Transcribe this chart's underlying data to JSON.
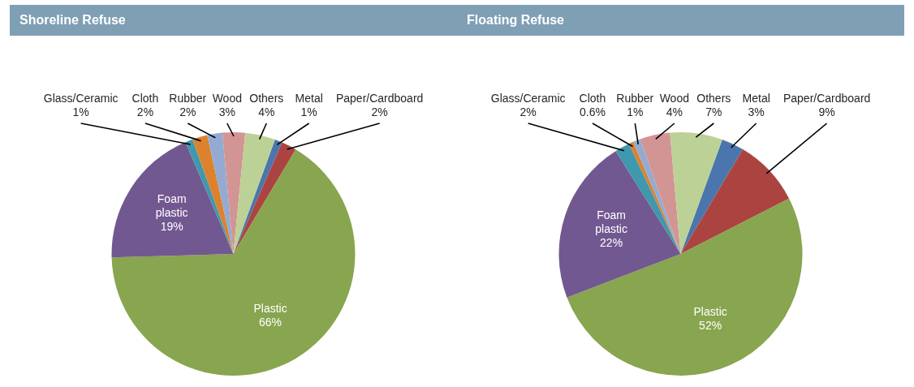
{
  "chart_data": [
    {
      "type": "pie",
      "title": "Shoreline Refuse",
      "categories": [
        "Metal",
        "Paper/Cardboard",
        "Plastic",
        "Foam plastic",
        "Glass/Ceramic",
        "Cloth",
        "Rubber",
        "Wood",
        "Others"
      ],
      "values": [
        1,
        2,
        66,
        19,
        1,
        2,
        2,
        3,
        4
      ],
      "colors": [
        "#4a76ad",
        "#ab4441",
        "#88a54f",
        "#725890",
        "#3f98ad",
        "#dc822f",
        "#93abd3",
        "#d29593",
        "#bcd195"
      ],
      "value_labels": [
        "1%",
        "2%",
        "66%",
        "19%",
        "1%",
        "2%",
        "2%",
        "3%",
        "4%"
      ]
    },
    {
      "type": "pie",
      "title": "Floating Refuse",
      "categories": [
        "Metal",
        "Paper/Cardboard",
        "Plastic",
        "Foam plastic",
        "Glass/Ceramic",
        "Cloth",
        "Rubber",
        "Wood",
        "Others"
      ],
      "values": [
        3,
        9,
        52,
        22,
        2,
        0.6,
        1,
        4,
        7
      ],
      "colors": [
        "#4a76ad",
        "#ab4441",
        "#88a54f",
        "#725890",
        "#3f98ad",
        "#dc822f",
        "#93abd3",
        "#d29593",
        "#bcd195"
      ],
      "value_labels": [
        "3%",
        "9%",
        "52%",
        "22%",
        "2%",
        "0.6%",
        "1%",
        "4%",
        "7%"
      ]
    }
  ]
}
